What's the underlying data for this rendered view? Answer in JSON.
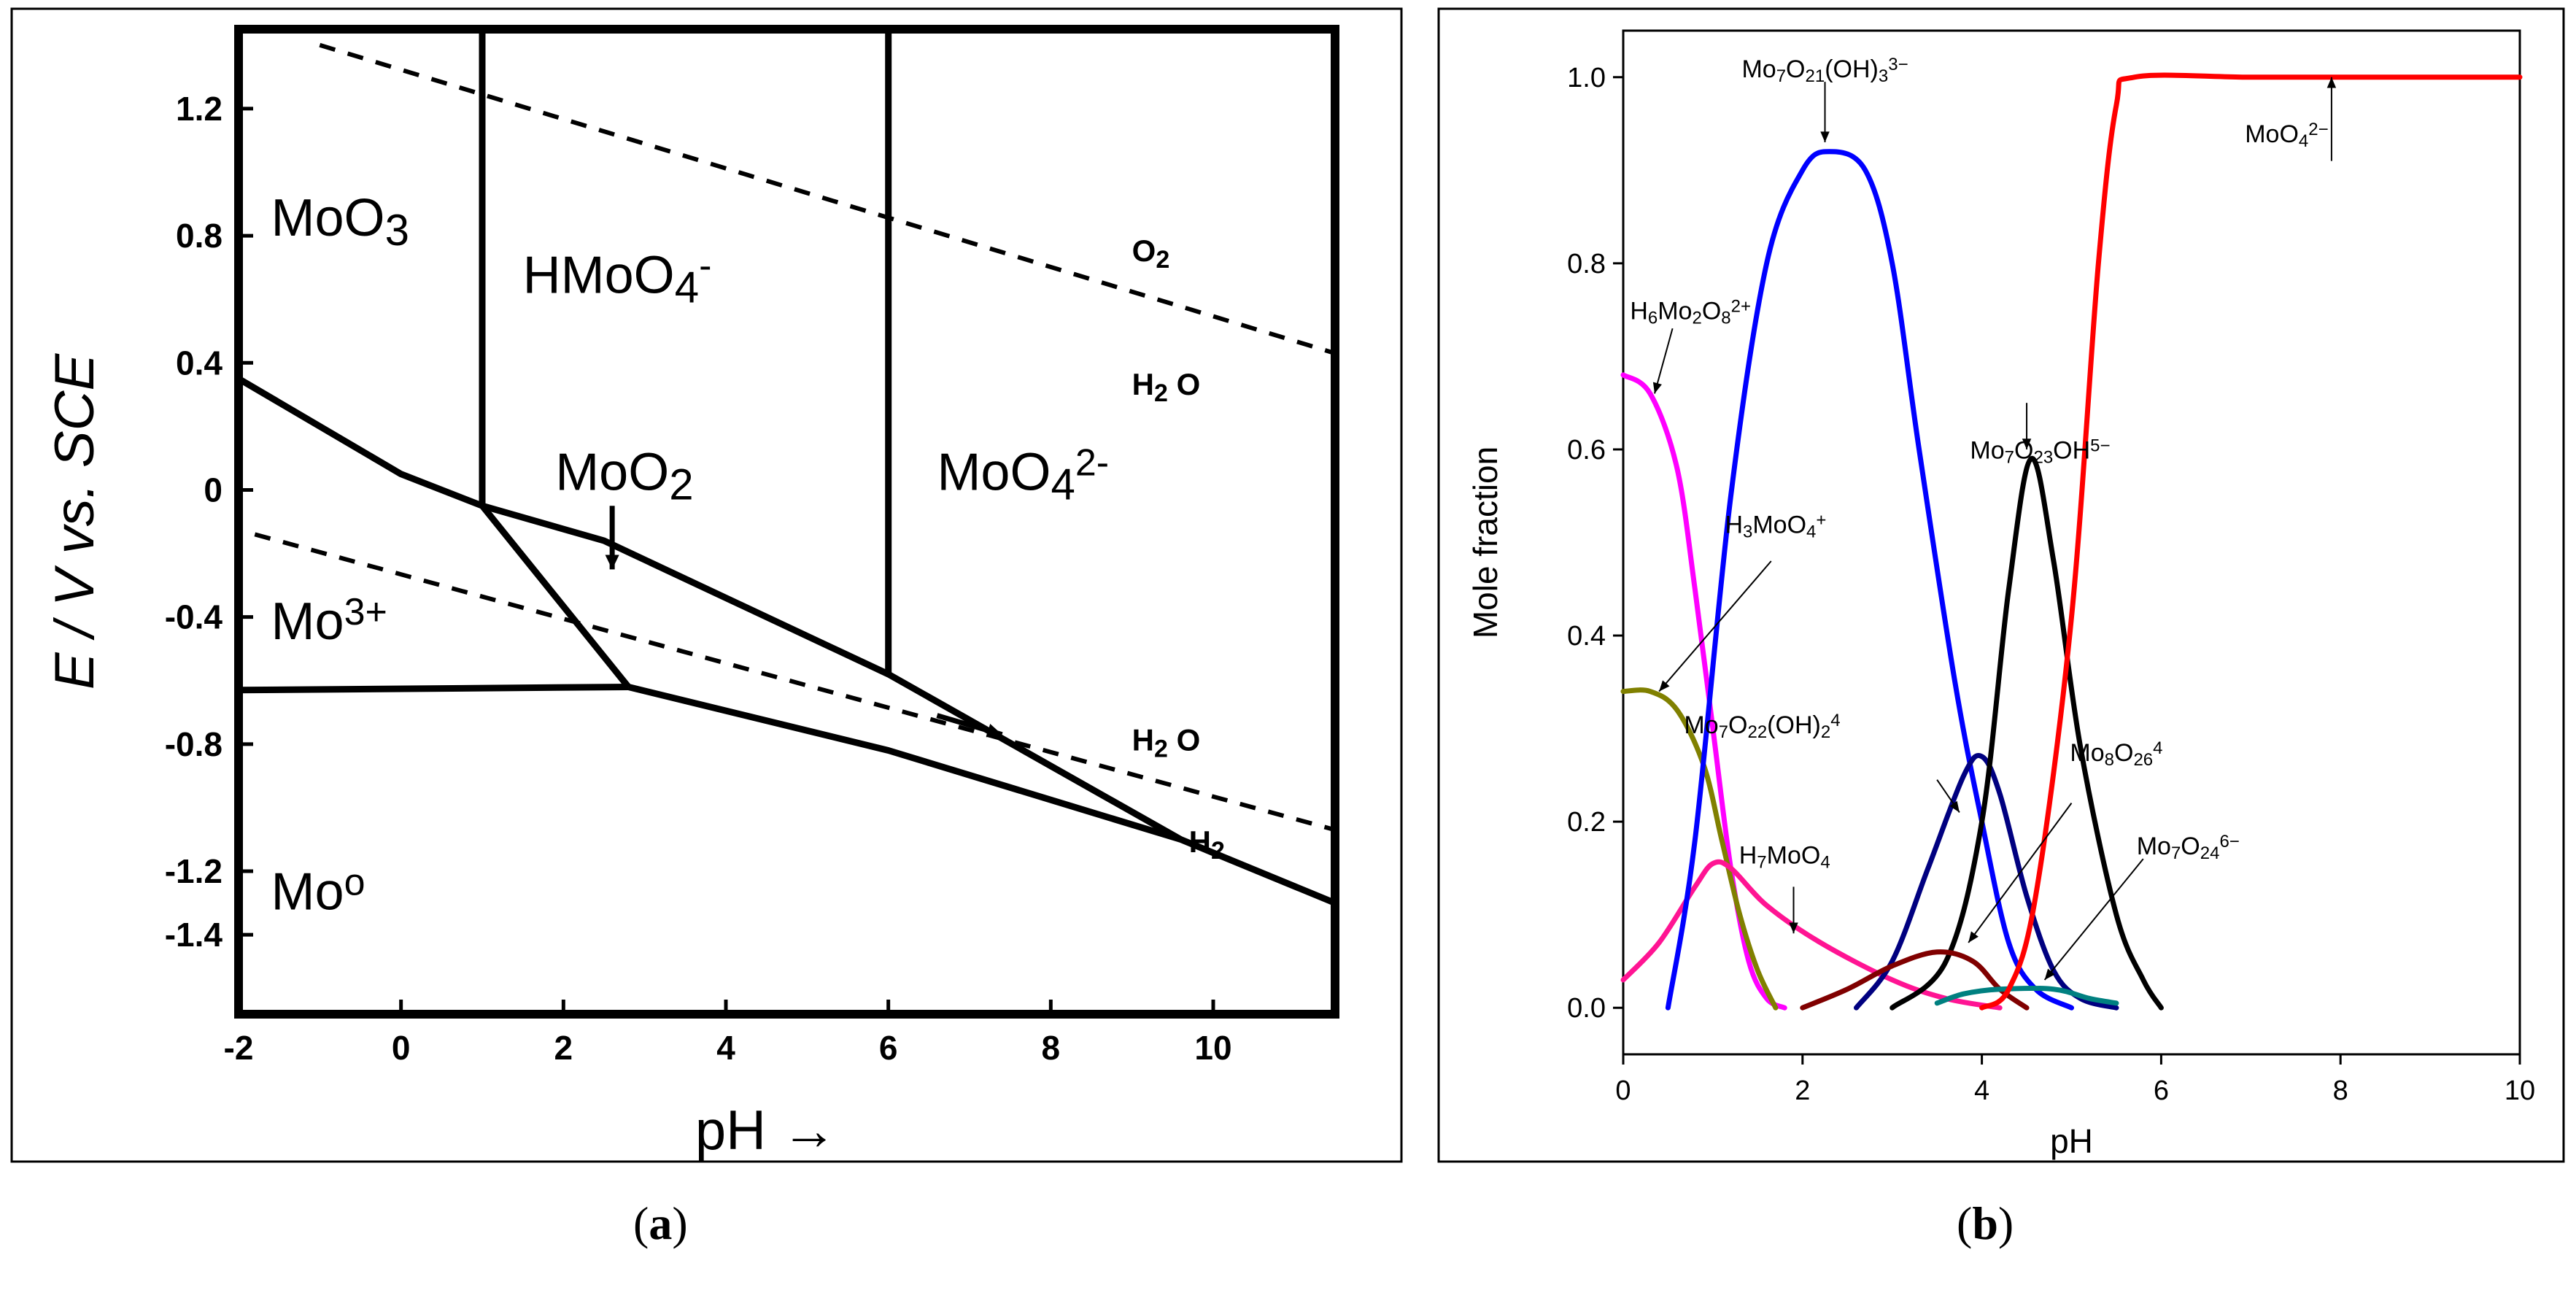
{
  "figure": {
    "panel_a_label": {
      "open": "(",
      "letter": "a",
      "close": ")"
    },
    "panel_b_label": {
      "open": "(",
      "letter": "b",
      "close": ")"
    }
  },
  "chart_data": [
    {
      "type": "line",
      "panel": "a",
      "title": "",
      "xlabel": "pH",
      "xlabel_arrow": "→",
      "ylabel": "E / V vs. SCE",
      "xlim": [
        -2,
        11.5
      ],
      "ylim": [
        -1.65,
        1.45
      ],
      "xticks": [
        "-2",
        "0",
        "2",
        "4",
        "6",
        "8",
        "10"
      ],
      "xtick_values": [
        -2,
        0,
        2,
        4,
        6,
        8,
        10
      ],
      "yticks": [
        "1.2",
        "0.8",
        "0.4",
        "0",
        "-0.4",
        "-0.8",
        "-1.2",
        "-1.4"
      ],
      "ytick_values": [
        1.2,
        0.8,
        0.4,
        0,
        -0.4,
        -0.8,
        -1.2,
        -1.4
      ],
      "boundaries": [
        {
          "name": "MoO3/HMoO4- boundary",
          "style": "solid",
          "points": [
            [
              1.0,
              1.45
            ],
            [
              1.0,
              -0.05
            ]
          ]
        },
        {
          "name": "HMoO4-/MoO4 2- boundary",
          "style": "solid",
          "points": [
            [
              6.0,
              1.45
            ],
            [
              6.0,
              -0.58
            ]
          ]
        },
        {
          "name": "MoO3/Mo3+ boundary",
          "style": "solid",
          "points": [
            [
              -2.0,
              0.35
            ],
            [
              0.0,
              0.05
            ],
            [
              1.0,
              -0.05
            ]
          ]
        },
        {
          "name": "MoO2 upper boundary",
          "style": "solid",
          "points": [
            [
              1.0,
              -0.05
            ],
            [
              2.5,
              -0.16
            ],
            [
              6.0,
              -0.58
            ],
            [
              9.6,
              -1.1
            ]
          ]
        },
        {
          "name": "Mo3+/MoO2 boundary",
          "style": "solid",
          "points": [
            [
              1.0,
              -0.05
            ],
            [
              2.8,
              -0.62
            ]
          ]
        },
        {
          "name": "Mo3+/Mo boundary",
          "style": "solid",
          "points": [
            [
              -2.0,
              -0.63
            ],
            [
              2.8,
              -0.62
            ]
          ]
        },
        {
          "name": "MoO2/Mo boundary",
          "style": "solid",
          "points": [
            [
              2.8,
              -0.62
            ],
            [
              6.0,
              -0.82
            ],
            [
              9.6,
              -1.1
            ],
            [
              11.5,
              -1.3
            ]
          ]
        },
        {
          "name": "O2/H2O line",
          "style": "dashed",
          "points": [
            [
              -1.0,
              1.4
            ],
            [
              11.5,
              0.43
            ]
          ]
        },
        {
          "name": "H2O/H2 line",
          "style": "dashed",
          "points": [
            [
              -1.8,
              -0.14
            ],
            [
              11.5,
              -1.07
            ]
          ]
        }
      ],
      "arrows": [
        {
          "name": "MoO2 pointer",
          "from": [
            2.6,
            -0.05
          ],
          "to": [
            2.6,
            -0.25
          ]
        },
        {
          "name": "dashed line arrow",
          "from": [
            6.6,
            -0.71
          ],
          "to": [
            7.4,
            -0.77
          ]
        }
      ],
      "regions": [
        {
          "label": "MoO",
          "sub": "3",
          "sup": "",
          "x": -1.6,
          "y": 0.8
        },
        {
          "label": "HMoO",
          "sub": "4",
          "sup": "-",
          "x": 1.5,
          "y": 0.62
        },
        {
          "label": "MoO",
          "sub": "2",
          "sup": "",
          "x": 1.9,
          "y": 0.0
        },
        {
          "label": "MoO",
          "sub": "4",
          "sup": "2-",
          "x": 6.6,
          "y": 0.0
        },
        {
          "label": "Mo",
          "sub": "",
          "sup": "3+",
          "x": -1.6,
          "y": -0.47
        },
        {
          "label": "Mo",
          "sub": "",
          "sup": "o",
          "x": -1.6,
          "y": -1.32
        }
      ],
      "annotations": [
        {
          "base": "O",
          "sub": "2",
          "x": 9.0,
          "y": 0.72
        },
        {
          "base": "H",
          "sub": "2",
          "tail": " O",
          "x": 9.0,
          "y": 0.3
        },
        {
          "base": "H",
          "sub": "2",
          "tail": " O",
          "x": 9.0,
          "y": -0.82
        },
        {
          "base": "H",
          "sub": "2",
          "tail": "",
          "x": 9.7,
          "y": -1.14
        }
      ]
    },
    {
      "type": "line",
      "panel": "b",
      "title": "",
      "xlabel": "pH",
      "ylabel": "Mole fraction",
      "xlim": [
        0,
        10
      ],
      "ylim": [
        -0.05,
        1.05
      ],
      "xticks": [
        "0",
        "2",
        "4",
        "6",
        "8",
        "10"
      ],
      "xtick_values": [
        0,
        2,
        4,
        6,
        8,
        10
      ],
      "yticks": [
        "0.0",
        "0.2",
        "0.4",
        "0.6",
        "0.8",
        "1.0"
      ],
      "ytick_values": [
        0.0,
        0.2,
        0.4,
        0.6,
        0.8,
        1.0
      ],
      "series": [
        {
          "name": "H6Mo2O8 2+",
          "color": "#ff00ff",
          "points": [
            [
              0,
              0.68
            ],
            [
              0.3,
              0.66
            ],
            [
              0.6,
              0.58
            ],
            [
              0.8,
              0.45
            ],
            [
              1.0,
              0.3
            ],
            [
              1.2,
              0.15
            ],
            [
              1.4,
              0.05
            ],
            [
              1.6,
              0.01
            ],
            [
              1.8,
              0.0
            ]
          ]
        },
        {
          "name": "H3MoO4+",
          "color": "#808000",
          "points": [
            [
              0,
              0.34
            ],
            [
              0.3,
              0.34
            ],
            [
              0.6,
              0.32
            ],
            [
              0.9,
              0.26
            ],
            [
              1.1,
              0.18
            ],
            [
              1.3,
              0.1
            ],
            [
              1.5,
              0.04
            ],
            [
              1.7,
              0.0
            ]
          ]
        },
        {
          "name": "H7MoO4",
          "color": "#ff1493",
          "points": [
            [
              0,
              0.03
            ],
            [
              0.4,
              0.07
            ],
            [
              0.8,
              0.13
            ],
            [
              1.0,
              0.155
            ],
            [
              1.2,
              0.15
            ],
            [
              1.6,
              0.11
            ],
            [
              2.2,
              0.07
            ],
            [
              3.0,
              0.03
            ],
            [
              3.6,
              0.01
            ],
            [
              4.2,
              0.0
            ]
          ]
        },
        {
          "name": "Mo7O21(OH)3 3-",
          "color": "#0000ff",
          "points": [
            [
              0.5,
              0.0
            ],
            [
              0.8,
              0.18
            ],
            [
              1.2,
              0.55
            ],
            [
              1.6,
              0.8
            ],
            [
              2.0,
              0.9
            ],
            [
              2.3,
              0.92
            ],
            [
              2.7,
              0.9
            ],
            [
              3.0,
              0.8
            ],
            [
              3.3,
              0.6
            ],
            [
              3.7,
              0.35
            ],
            [
              4.0,
              0.2
            ],
            [
              4.3,
              0.07
            ],
            [
              4.6,
              0.02
            ],
            [
              5.0,
              0.0
            ]
          ]
        },
        {
          "name": "Mo7O22(OH)2 4-",
          "color": "#000080",
          "points": [
            [
              2.6,
              0.0
            ],
            [
              3.0,
              0.05
            ],
            [
              3.4,
              0.15
            ],
            [
              3.8,
              0.25
            ],
            [
              4.0,
              0.27
            ],
            [
              4.2,
              0.23
            ],
            [
              4.5,
              0.12
            ],
            [
              4.8,
              0.04
            ],
            [
              5.1,
              0.01
            ],
            [
              5.5,
              0.0
            ]
          ]
        },
        {
          "name": "Mo7O23OH 5-",
          "color": "#000000",
          "points": [
            [
              3.0,
              0.0
            ],
            [
              3.6,
              0.05
            ],
            [
              4.0,
              0.2
            ],
            [
              4.3,
              0.45
            ],
            [
              4.55,
              0.59
            ],
            [
              4.8,
              0.48
            ],
            [
              5.1,
              0.28
            ],
            [
              5.5,
              0.1
            ],
            [
              5.8,
              0.03
            ],
            [
              6.0,
              0.0
            ]
          ]
        },
        {
          "name": "Mo8O26 4-",
          "color": "#800000",
          "points": [
            [
              2.0,
              0.0
            ],
            [
              2.5,
              0.02
            ],
            [
              3.0,
              0.045
            ],
            [
              3.5,
              0.06
            ],
            [
              3.9,
              0.05
            ],
            [
              4.2,
              0.02
            ],
            [
              4.5,
              0.0
            ]
          ]
        },
        {
          "name": "Mo7O24 6-",
          "color": "#008080",
          "points": [
            [
              3.5,
              0.005
            ],
            [
              3.8,
              0.015
            ],
            [
              4.2,
              0.02
            ],
            [
              4.8,
              0.02
            ],
            [
              5.2,
              0.01
            ],
            [
              5.5,
              0.005
            ]
          ]
        },
        {
          "name": "MoO4 2-",
          "color": "#ff0000",
          "points": [
            [
              4.0,
              0.0
            ],
            [
              4.3,
              0.02
            ],
            [
              4.6,
              0.12
            ],
            [
              5.0,
              0.42
            ],
            [
              5.3,
              0.8
            ],
            [
              5.5,
              0.97
            ],
            [
              5.7,
              1.0
            ],
            [
              7.0,
              1.0
            ],
            [
              8.6,
              1.0
            ],
            [
              10.0,
              1.0
            ]
          ]
        }
      ],
      "labels": [
        {
          "base": "Mo",
          "s1": "7",
          "mid": "O",
          "s2": "21",
          "tail": "(OH)",
          "sub3": "3",
          "sup": "3−",
          "x": 2.25,
          "y": 1.0
        },
        {
          "base": "MoO",
          "s1": "4",
          "sup": "2−",
          "x": 7.4,
          "y": 0.93
        },
        {
          "base": "H",
          "s1": "6",
          "mid": "Mo",
          "s2": "2",
          "tail": "O",
          "sub3": "8",
          "sup": "2+",
          "x": 0.75,
          "y": 0.74
        },
        {
          "base": "Mo",
          "s1": "7",
          "mid": "O",
          "s2": "23",
          "tail": "OH",
          "sup": "5−",
          "x": 4.65,
          "y": 0.59
        },
        {
          "base": "H",
          "s1": "3",
          "mid": "MoO",
          "s2": "4",
          "sup": "+",
          "x": 1.7,
          "y": 0.51
        },
        {
          "base": "Mo",
          "s1": "7",
          "mid": "O",
          "s2": "22",
          "tail": "(OH)",
          "sub3": "2",
          "sup": "4",
          "x": 1.55,
          "y": 0.295
        },
        {
          "base": "Mo",
          "s1": "8",
          "mid": "O",
          "s2": "26",
          "sup": "4",
          "x": 5.5,
          "y": 0.265
        },
        {
          "base": "H",
          "s1": "7",
          "mid": "MoO",
          "s2": "4",
          "x": 1.8,
          "y": 0.155
        },
        {
          "base": "Mo",
          "s1": "7",
          "mid": "O",
          "s2": "24",
          "sup": "6−",
          "x": 6.3,
          "y": 0.165
        }
      ]
    }
  ]
}
